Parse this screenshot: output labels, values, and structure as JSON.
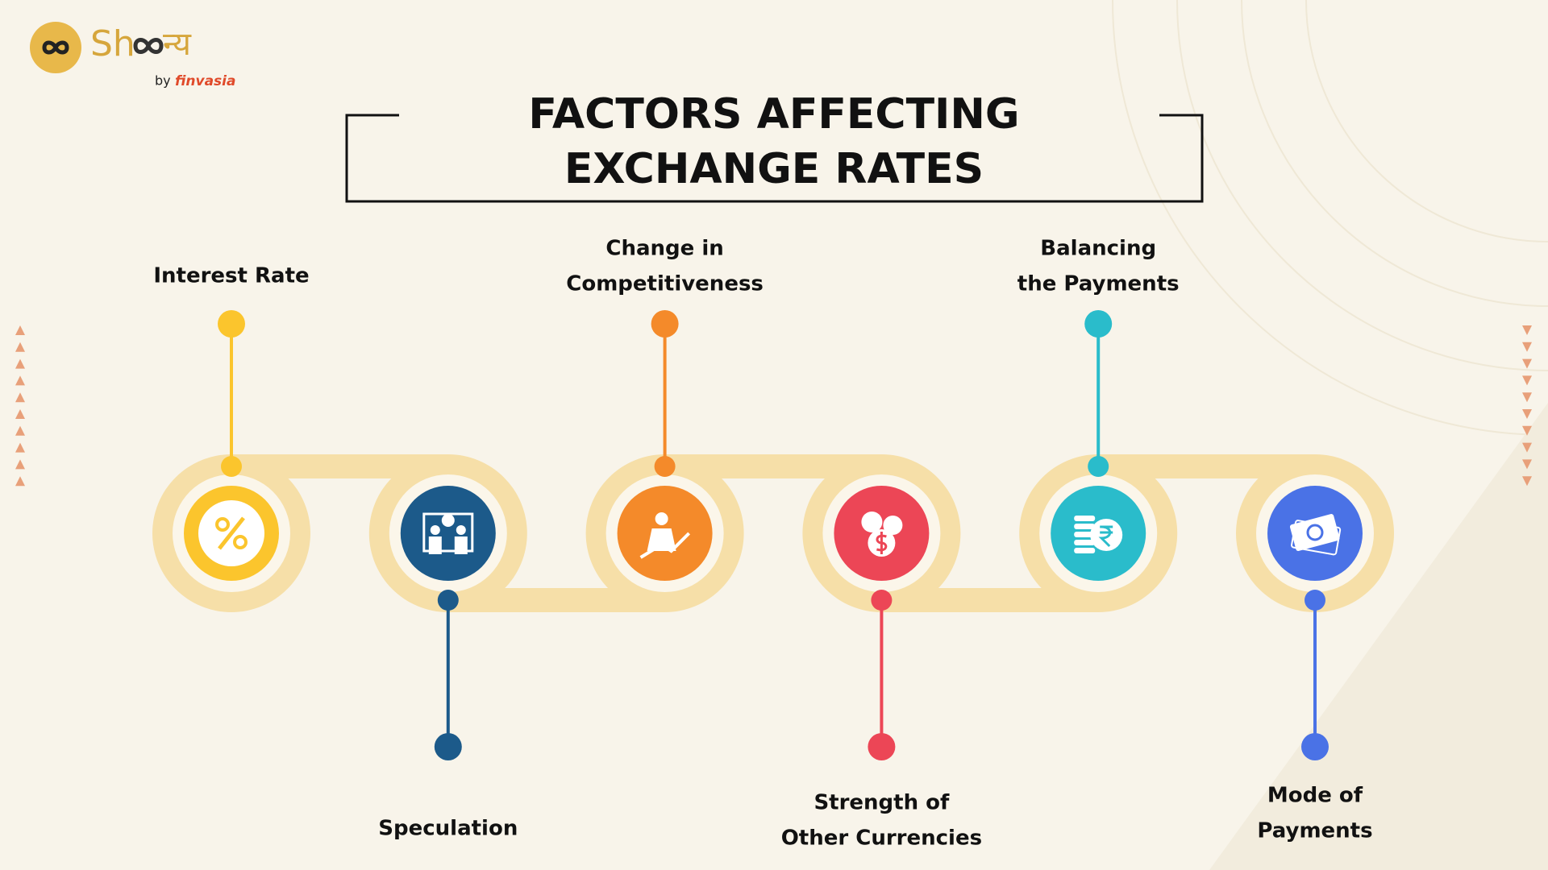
{
  "logo": {
    "brand_start": "Sh",
    "brand_end": "न्य",
    "by": "by",
    "company": "finvasia"
  },
  "title": "FACTORS AFFECTING EXCHANGE RATES",
  "nodes": [
    {
      "label": [
        "Interest Rate"
      ],
      "position": "top",
      "color": "#fbc52d"
    },
    {
      "label": [
        "Speculation"
      ],
      "position": "bottom",
      "color": "#1c5a8a"
    },
    {
      "label": [
        "Change in",
        "Competitiveness"
      ],
      "position": "top",
      "color": "#f48a2a"
    },
    {
      "label": [
        "Strength of",
        "Other Currencies"
      ],
      "position": "bottom",
      "color": "#ec4656"
    },
    {
      "label": [
        "Balancing",
        "the Payments"
      ],
      "position": "top",
      "color": "#2abccb"
    },
    {
      "label": [
        "Mode of",
        "Payments"
      ],
      "position": "bottom",
      "color": "#4a72e6"
    }
  ]
}
